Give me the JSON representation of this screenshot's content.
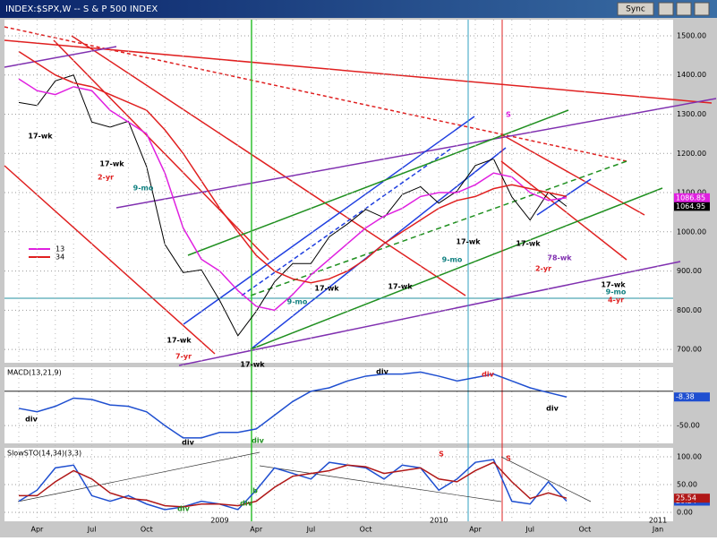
{
  "window": {
    "title": "INDEX:$SPX,W -- S & P 500 INDEX",
    "buttons": [
      "Sync"
    ]
  },
  "chart_data": [
    {
      "type": "line",
      "categories": [
        null,
        "Apr",
        null,
        null,
        "Jul",
        null,
        null,
        "Oct",
        null,
        null,
        null,
        null,
        null,
        "Apr",
        null,
        null,
        "Jul",
        null,
        null,
        "Oct",
        null,
        null,
        null,
        null,
        null,
        "Apr",
        null,
        null,
        "Jul",
        null,
        null,
        "Oct",
        null,
        null,
        null,
        "Jan"
      ],
      "years": [
        null,
        null,
        null,
        null,
        null,
        null,
        null,
        null,
        null,
        null,
        null,
        "2009",
        null,
        null,
        null,
        null,
        null,
        null,
        null,
        null,
        null,
        null,
        null,
        "2010",
        null,
        null,
        null,
        null,
        null,
        null,
        null,
        null,
        null,
        null,
        null,
        "2011"
      ],
      "series": [
        {
          "name": "S & P 500",
          "color": "#000000",
          "values": [
            1330,
            1322,
            1385,
            1400,
            1280,
            1267,
            1282,
            1166,
            968,
            896,
            903,
            825,
            735,
            797,
            872,
            919,
            919,
            987,
            1020,
            1057,
            1036,
            1095,
            1115,
            1073,
            1104,
            1169,
            1186,
            1089,
            1030,
            1101,
            1064.95,
            null,
            null,
            null,
            null,
            null
          ]
        },
        {
          "name": "13",
          "color": "#e020e0",
          "values": [
            1390,
            1360,
            1350,
            1370,
            1360,
            1310,
            1280,
            1250,
            1150,
            1010,
            930,
            900,
            850,
            810,
            800,
            840,
            890,
            930,
            970,
            1010,
            1040,
            1060,
            1090,
            1100,
            1100,
            1120,
            1150,
            1140,
            1100,
            1080,
            1086.85,
            null,
            null,
            null,
            null,
            null
          ]
        },
        {
          "name": "34",
          "color": "#e02020",
          "values": [
            1460,
            1430,
            1400,
            1380,
            1370,
            1350,
            1330,
            1310,
            1260,
            1200,
            1130,
            1060,
            1000,
            940,
            900,
            880,
            870,
            880,
            900,
            930,
            970,
            1000,
            1030,
            1060,
            1080,
            1090,
            1110,
            1120,
            1110,
            1100,
            1090,
            null,
            null,
            null,
            null,
            null
          ]
        }
      ],
      "ylim": [
        666,
        1541
      ],
      "yticks": [
        {
          "value": 1500,
          "label": "1500.00"
        },
        {
          "value": 1400,
          "label": "1400.00"
        },
        {
          "value": 1300,
          "label": "1300.00"
        },
        {
          "value": 1200,
          "label": "1200.00"
        },
        {
          "value": 1100,
          "label": "1100.00"
        },
        {
          "value": 1000,
          "label": "1000.00"
        },
        {
          "value": 900,
          "label": "900.00"
        },
        {
          "value": 800,
          "label": "800.00"
        },
        {
          "value": 700,
          "label": "700.00"
        }
      ],
      "grid": true,
      "legend": "left",
      "annotations": [
        "17-wk",
        "17-wk",
        "2-yr",
        "9-mo",
        "17-wk",
        "7-yr",
        "17-wk",
        "9-mo",
        "17-wk",
        "17-wk",
        "17-wk",
        "9-mo",
        "S",
        "17-wk",
        "78-wk",
        "2-yr",
        "17-wk",
        "9-mo",
        "4-yr"
      ]
    },
    {
      "type": "line",
      "title": "MACD(13,21,9)",
      "series": [
        {
          "color": "#1f4fd0",
          "values": [
            -25,
            -30,
            -22,
            -10,
            -12,
            -20,
            -22,
            -30,
            -50,
            -68,
            -68,
            -60,
            -60,
            -55,
            -35,
            -15,
            0,
            5,
            15,
            22,
            25,
            25,
            28,
            22,
            15,
            20,
            25,
            15,
            5,
            -2,
            -8.38,
            null,
            null,
            null,
            null,
            null
          ]
        }
      ],
      "ylim": [
        -76,
        35
      ],
      "yticks": [
        {
          "value": -50,
          "label": "-50.00"
        }
      ],
      "grid": true,
      "annotations": [
        "div",
        "div",
        "div",
        "div",
        "div",
        "div"
      ]
    },
    {
      "type": "line",
      "title": "SlowSTO(14,34)(3,3)",
      "series": [
        {
          "color": "#1f4fd0",
          "values": [
            20,
            40,
            80,
            85,
            30,
            20,
            30,
            15,
            5,
            10,
            20,
            15,
            5,
            40,
            80,
            70,
            60,
            90,
            85,
            80,
            60,
            85,
            80,
            40,
            60,
            90,
            95,
            20,
            15,
            55,
            20.24,
            null,
            null,
            null,
            null,
            null
          ]
        },
        {
          "color": "#b01818",
          "values": [
            30,
            30,
            55,
            75,
            60,
            35,
            25,
            22,
            12,
            10,
            15,
            15,
            12,
            20,
            45,
            65,
            70,
            75,
            85,
            82,
            70,
            75,
            80,
            60,
            55,
            75,
            90,
            55,
            25,
            35,
            25.54,
            null,
            null,
            null,
            null,
            null
          ]
        }
      ],
      "ylim": [
        -16,
        116
      ],
      "yticks": [
        {
          "value": 100,
          "label": "100.00"
        },
        {
          "value": 50,
          "label": "50.00"
        },
        {
          "value": 0,
          "label": "0.00"
        }
      ],
      "grid": true,
      "annotations": [
        "S",
        "S",
        "div",
        "div",
        "b"
      ]
    }
  ]
}
